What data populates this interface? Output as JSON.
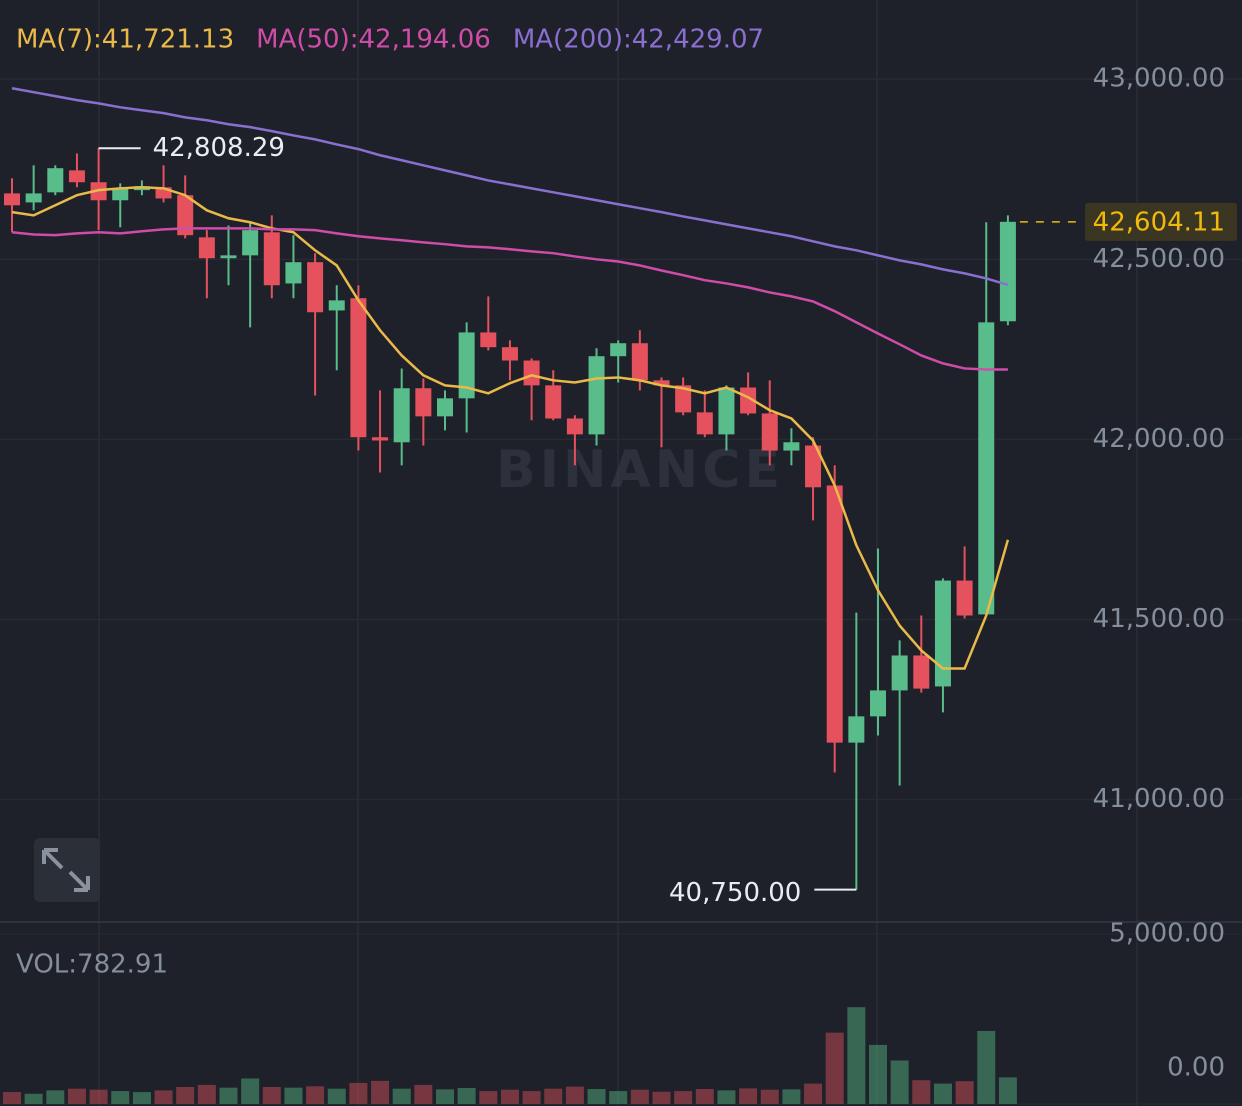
{
  "chart_data": {
    "type": "candlestick",
    "watermark": "BINANCE",
    "open": [
      42683,
      42658,
      42686,
      42747,
      42714,
      42664,
      42692,
      42700,
      42678,
      42561,
      42503,
      42511,
      42575,
      42433,
      42492,
      42358,
      42392,
      42006,
      41992,
      42142,
      42064,
      42114,
      42297,
      42256,
      42219,
      42150,
      42058,
      42014,
      42231,
      42267,
      42164,
      42150,
      42075,
      42014,
      42144,
      42072,
      41969,
      41983,
      41872,
      41158,
      41231,
      41303,
      41400,
      41314,
      41608,
      41514,
      42328
    ],
    "high": [
      42725,
      42761,
      42761,
      42794,
      42808.29,
      42711,
      42719,
      42761,
      42733,
      42581,
      42594,
      42603,
      42622,
      42567,
      42517,
      42428,
      42428,
      42136,
      42197,
      42169,
      42136,
      42325,
      42397,
      42275,
      42225,
      42192,
      42067,
      42253,
      42275,
      42303,
      42172,
      42172,
      42136,
      42150,
      42186,
      42164,
      42031,
      42006,
      41928,
      41519,
      41697,
      41442,
      41511,
      41614,
      41703,
      42603,
      42622
    ],
    "low": [
      42575,
      42636,
      42678,
      42700,
      42581,
      42589,
      42678,
      42658,
      42558,
      42392,
      42428,
      42311,
      42392,
      42392,
      42122,
      42192,
      41969,
      41908,
      41928,
      41983,
      42025,
      42019,
      42247,
      42164,
      42053,
      42053,
      41928,
      41983,
      42158,
      42136,
      41978,
      42067,
      42006,
      41969,
      42067,
      41928,
      41928,
      41775,
      41075,
      40750,
      41178,
      41039,
      41297,
      41242,
      41503,
      41514,
      42317
    ],
    "close": [
      42650,
      42683,
      42753,
      42714,
      42664,
      42697,
      42703,
      42669,
      42567,
      42503,
      42511,
      42581,
      42428,
      42492,
      42353,
      42386,
      42006,
      41997,
      42142,
      42064,
      42114,
      42297,
      42256,
      42219,
      42150,
      42058,
      42014,
      42231,
      42267,
      42164,
      42150,
      42075,
      42014,
      42144,
      42072,
      41969,
      41992,
      41867,
      41158,
      41231,
      41303,
      41400,
      41308,
      41608,
      41511,
      42325,
      42604.11
    ],
    "up_color": "#58bd8a",
    "down_color": "#e5525e",
    "ylim": [
      40660,
      43220
    ],
    "yticks": [
      {
        "value": 41000,
        "label": "41,000.00"
      },
      {
        "value": 41500,
        "label": "41,500.00"
      },
      {
        "value": 42000,
        "label": "42,000.00"
      },
      {
        "value": 42500,
        "label": "42,500.00"
      },
      {
        "value": 43000,
        "label": "43,000.00"
      }
    ],
    "grid": true,
    "overlays": [
      {
        "name": "MA(7):41,721.13",
        "color": "#e9b949",
        "values": [
          42631,
          42622,
          42650,
          42678,
          42692,
          42697,
          42700,
          42697,
          42678,
          42636,
          42614,
          42603,
          42586,
          42575,
          42525,
          42483,
          42386,
          42303,
          42233,
          42178,
          42150,
          42144,
          42128,
          42156,
          42178,
          42164,
          42158,
          42169,
          42172,
          42164,
          42150,
          42142,
          42128,
          42144,
          42117,
          42081,
          42058,
          41997,
          41872,
          41706,
          41581,
          41483,
          41414,
          41364,
          41364,
          41511,
          41721.13
        ]
      },
      {
        "name": "MA(50):42,194.06",
        "color": "#d04ca9",
        "values": [
          42575,
          42569,
          42567,
          42572,
          42575,
          42572,
          42578,
          42583,
          42586,
          42586,
          42586,
          42586,
          42583,
          42583,
          42581,
          42572,
          42564,
          42558,
          42553,
          42547,
          42542,
          42536,
          42533,
          42528,
          42522,
          42517,
          42508,
          42500,
          42494,
          42483,
          42469,
          42456,
          42442,
          42433,
          42422,
          42408,
          42397,
          42383,
          42356,
          42325,
          42294,
          42264,
          42233,
          42211,
          42197,
          42194,
          42194.06
        ]
      },
      {
        "name": "MA(200):42,429.07",
        "color": "#8b6fd0",
        "values": [
          42975,
          42964,
          42953,
          42942,
          42933,
          42922,
          42914,
          42906,
          42894,
          42886,
          42875,
          42867,
          42856,
          42844,
          42833,
          42819,
          42806,
          42789,
          42775,
          42761,
          42747,
          42733,
          42719,
          42708,
          42697,
          42686,
          42675,
          42664,
          42653,
          42642,
          42631,
          42619,
          42608,
          42597,
          42586,
          42575,
          42564,
          42550,
          42536,
          42525,
          42511,
          42497,
          42486,
          42472,
          42461,
          42447,
          42429.07
        ]
      }
    ],
    "annotations": [
      {
        "value": 42808.29,
        "label": "42,808.29"
      },
      {
        "value": 40750,
        "label": "40,750.00"
      }
    ],
    "last_price": {
      "value": 42604.11,
      "label": "42,604.11",
      "color": "#f0b90b"
    },
    "volume": {
      "name": "VOL:782.91",
      "values": [
        350,
        300,
        400,
        450,
        420,
        380,
        350,
        400,
        500,
        560,
        480,
        750,
        500,
        480,
        520,
        450,
        620,
        680,
        450,
        560,
        430,
        470,
        380,
        420,
        380,
        450,
        510,
        440,
        380,
        420,
        360,
        380,
        440,
        400,
        460,
        420,
        430,
        600,
        2100,
        2850,
        1740,
        1280,
        700,
        600,
        670,
        2150,
        782.91
      ],
      "ylim": [
        -60,
        5300
      ],
      "yticks": [
        {
          "value": 0,
          "label": "0.00"
        },
        {
          "value": 5000,
          "label": "5,000.00"
        }
      ]
    }
  }
}
